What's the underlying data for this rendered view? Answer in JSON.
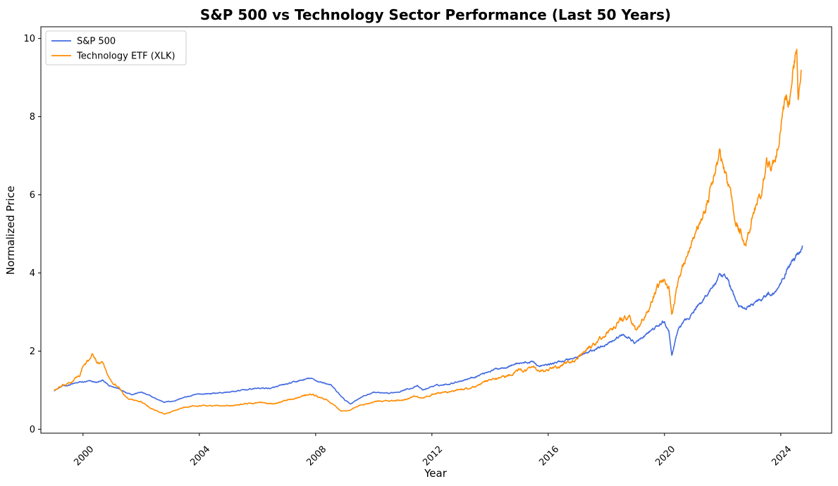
{
  "chart_data": {
    "type": "line",
    "title": "S&P 500 vs Technology Sector Performance (Last 50 Years)",
    "xlabel": "Year",
    "ylabel": "Normalized Price",
    "xlim": [
      1998.55,
      2025.75
    ],
    "ylim": [
      -0.1,
      10.3
    ],
    "x_ticks": [
      2000,
      2004,
      2008,
      2012,
      2016,
      2020,
      2024
    ],
    "y_ticks": [
      0,
      2,
      4,
      6,
      8,
      10
    ],
    "grid": false,
    "legend_position": "upper-left",
    "series": [
      {
        "name": "S&P 500",
        "color": "#4169E1",
        "x": [
          1999.0,
          1999.3,
          1999.6,
          1999.9,
          2000.2,
          2000.5,
          2000.7,
          2000.9,
          2001.2,
          2001.5,
          2001.7,
          2002.0,
          2002.3,
          2002.6,
          2002.8,
          2003.1,
          2003.4,
          2003.7,
          2004.0,
          2004.5,
          2005.0,
          2005.5,
          2006.0,
          2006.5,
          2007.0,
          2007.5,
          2007.8,
          2008.2,
          2008.5,
          2008.8,
          2009.0,
          2009.2,
          2009.5,
          2010.0,
          2010.5,
          2011.0,
          2011.5,
          2011.7,
          2012.0,
          2012.5,
          2013.0,
          2013.5,
          2014.0,
          2014.5,
          2015.0,
          2015.5,
          2015.7,
          2016.0,
          2016.5,
          2017.0,
          2017.5,
          2018.0,
          2018.5,
          2018.8,
          2019.0,
          2019.5,
          2020.0,
          2020.15,
          2020.25,
          2020.5,
          2021.0,
          2021.5,
          2021.9,
          2022.2,
          2022.5,
          2022.8,
          2023.0,
          2023.5,
          2023.8,
          2024.0,
          2024.3,
          2024.6,
          2024.75
        ],
        "values": [
          1.0,
          1.1,
          1.15,
          1.2,
          1.22,
          1.2,
          1.25,
          1.1,
          1.05,
          0.95,
          0.9,
          0.95,
          0.85,
          0.75,
          0.7,
          0.72,
          0.8,
          0.85,
          0.9,
          0.92,
          0.95,
          1.0,
          1.05,
          1.05,
          1.15,
          1.25,
          1.3,
          1.2,
          1.15,
          0.9,
          0.75,
          0.65,
          0.8,
          0.95,
          0.9,
          1.0,
          1.1,
          1.0,
          1.1,
          1.15,
          1.25,
          1.35,
          1.5,
          1.6,
          1.7,
          1.72,
          1.6,
          1.65,
          1.75,
          1.85,
          2.0,
          2.2,
          2.4,
          2.35,
          2.2,
          2.5,
          2.75,
          2.5,
          1.9,
          2.6,
          3.0,
          3.5,
          3.9,
          3.8,
          3.2,
          3.05,
          3.2,
          3.45,
          3.5,
          3.8,
          4.25,
          4.5,
          4.7
        ]
      },
      {
        "name": "Technology ETF (XLK)",
        "color": "#FF8C00",
        "x": [
          1999.0,
          1999.3,
          1999.6,
          1999.9,
          2000.0,
          2000.2,
          2000.3,
          2000.5,
          2000.7,
          2000.9,
          2001.2,
          2001.5,
          2001.7,
          2002.0,
          2002.3,
          2002.6,
          2002.8,
          2003.1,
          2003.4,
          2003.7,
          2004.0,
          2004.5,
          2005.0,
          2005.5,
          2006.0,
          2006.5,
          2007.0,
          2007.5,
          2007.8,
          2008.2,
          2008.5,
          2008.8,
          2009.0,
          2009.2,
          2009.5,
          2010.0,
          2010.5,
          2011.0,
          2011.5,
          2011.7,
          2012.0,
          2012.5,
          2013.0,
          2013.5,
          2014.0,
          2014.5,
          2015.0,
          2015.5,
          2015.7,
          2016.0,
          2016.5,
          2017.0,
          2017.5,
          2018.0,
          2018.5,
          2018.8,
          2019.0,
          2019.5,
          2020.0,
          2020.15,
          2020.25,
          2020.5,
          2021.0,
          2021.5,
          2021.9,
          2022.2,
          2022.5,
          2022.8,
          2023.0,
          2023.3,
          2023.5,
          2023.8,
          2024.0,
          2024.3,
          2024.55,
          2024.6,
          2024.7
        ],
        "values": [
          1.0,
          1.1,
          1.2,
          1.4,
          1.6,
          1.75,
          1.95,
          1.7,
          1.65,
          1.3,
          1.1,
          0.8,
          0.75,
          0.7,
          0.55,
          0.45,
          0.4,
          0.45,
          0.55,
          0.6,
          0.62,
          0.6,
          0.6,
          0.65,
          0.68,
          0.65,
          0.75,
          0.85,
          0.9,
          0.8,
          0.7,
          0.5,
          0.45,
          0.5,
          0.6,
          0.7,
          0.72,
          0.75,
          0.85,
          0.8,
          0.9,
          0.95,
          1.0,
          1.1,
          1.25,
          1.35,
          1.5,
          1.55,
          1.45,
          1.5,
          1.65,
          1.8,
          2.1,
          2.45,
          2.8,
          2.9,
          2.5,
          3.1,
          3.9,
          3.6,
          2.9,
          3.9,
          5.0,
          5.8,
          7.1,
          6.2,
          5.2,
          4.8,
          5.3,
          6.0,
          6.9,
          6.7,
          7.8,
          8.5,
          9.8,
          8.4,
          9.2
        ]
      }
    ]
  }
}
